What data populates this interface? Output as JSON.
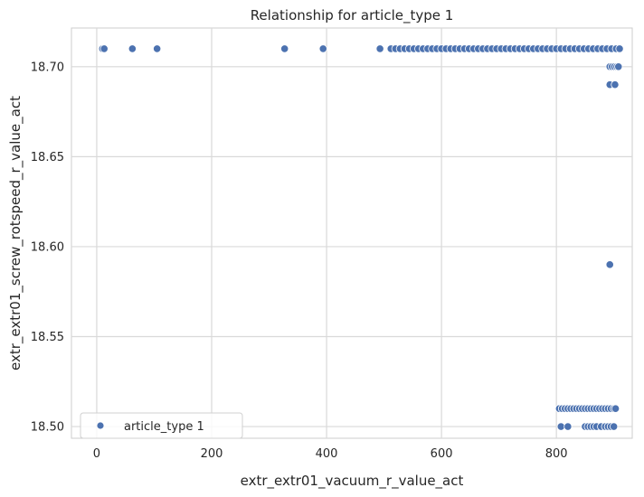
{
  "chart_data": {
    "type": "scatter",
    "title": "Relationship for article_type 1",
    "xlabel": "extr_extr01_vacuum_r_value_act",
    "ylabel": "extr_extr01_screw_rotspeed_r_value_act",
    "xlim": [
      -44,
      932
    ],
    "ylim": [
      18.4935,
      18.7215
    ],
    "xticks": [
      0,
      200,
      400,
      600,
      800
    ],
    "yticks": [
      18.5,
      18.55,
      18.6,
      18.65,
      18.7
    ],
    "ytick_labels": [
      "18.50",
      "18.55",
      "18.60",
      "18.65",
      "18.70"
    ],
    "grid": true,
    "legend_position": "lower-left",
    "series": [
      {
        "name": "article_type 1",
        "color": "#4c72b0",
        "x": [
          10,
          13,
          62,
          105,
          327,
          394,
          493,
          512,
          520,
          528,
          536,
          544,
          552,
          560,
          568,
          576,
          584,
          592,
          600,
          608,
          616,
          624,
          632,
          640,
          648,
          656,
          664,
          672,
          680,
          688,
          696,
          704,
          712,
          720,
          728,
          736,
          744,
          752,
          760,
          768,
          776,
          784,
          792,
          800,
          808,
          816,
          824,
          832,
          840,
          848,
          856,
          864,
          872,
          880,
          888,
          896,
          904,
          910,
          893,
          897,
          901,
          905,
          908,
          893,
          902,
          893,
          805,
          810,
          815,
          820,
          825,
          830,
          835,
          840,
          845,
          850,
          855,
          860,
          865,
          870,
          875,
          880,
          885,
          890,
          895,
          900,
          903,
          808,
          820,
          850,
          855,
          860,
          865,
          870,
          878,
          885,
          890,
          895,
          900
        ],
        "y": [
          18.71,
          18.71,
          18.71,
          18.71,
          18.71,
          18.71,
          18.71,
          18.71,
          18.71,
          18.71,
          18.71,
          18.71,
          18.71,
          18.71,
          18.71,
          18.71,
          18.71,
          18.71,
          18.71,
          18.71,
          18.71,
          18.71,
          18.71,
          18.71,
          18.71,
          18.71,
          18.71,
          18.71,
          18.71,
          18.71,
          18.71,
          18.71,
          18.71,
          18.71,
          18.71,
          18.71,
          18.71,
          18.71,
          18.71,
          18.71,
          18.71,
          18.71,
          18.71,
          18.71,
          18.71,
          18.71,
          18.71,
          18.71,
          18.71,
          18.71,
          18.71,
          18.71,
          18.71,
          18.71,
          18.71,
          18.71,
          18.71,
          18.71,
          18.7,
          18.7,
          18.7,
          18.7,
          18.7,
          18.69,
          18.69,
          18.59,
          18.51,
          18.51,
          18.51,
          18.51,
          18.51,
          18.51,
          18.51,
          18.51,
          18.51,
          18.51,
          18.51,
          18.51,
          18.51,
          18.51,
          18.51,
          18.51,
          18.51,
          18.51,
          18.51,
          18.51,
          18.51,
          18.5,
          18.5,
          18.5,
          18.5,
          18.5,
          18.5,
          18.5,
          18.5,
          18.5,
          18.5,
          18.5,
          18.5
        ]
      }
    ]
  }
}
